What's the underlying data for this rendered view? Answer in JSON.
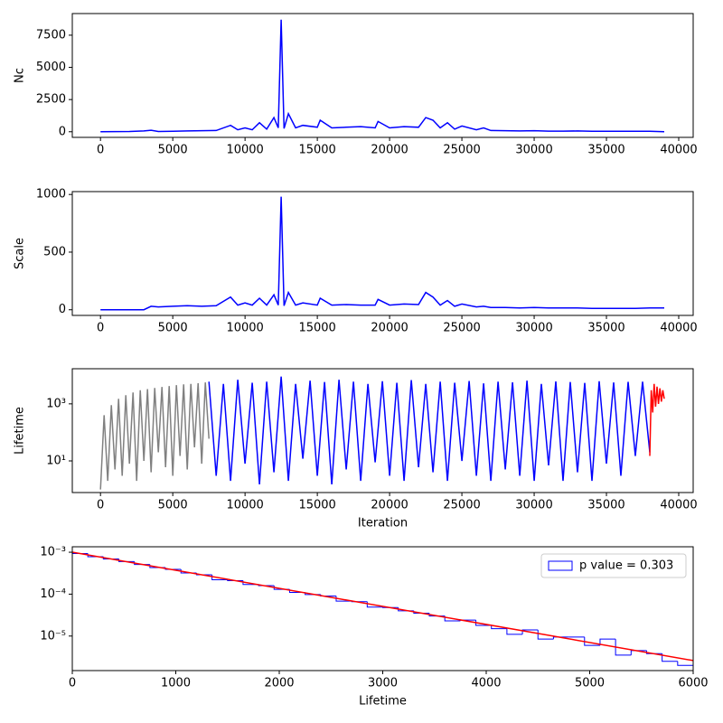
{
  "chart_data": [
    {
      "type": "line",
      "ylabel": "Nc",
      "color": "#0000ff",
      "x": [
        0,
        1000,
        2000,
        3000,
        3500,
        4000,
        5000,
        6000,
        7000,
        8000,
        9000,
        9500,
        10000,
        10500,
        11000,
        11500,
        12000,
        12300,
        12500,
        12700,
        13000,
        13500,
        14000,
        15000,
        15200,
        16000,
        17000,
        18000,
        19000,
        19200,
        20000,
        21000,
        22000,
        22500,
        23000,
        23500,
        24000,
        24500,
        25000,
        26000,
        26500,
        27000,
        28000,
        29000,
        30000,
        31000,
        32000,
        33000,
        34000,
        35000,
        36000,
        37000,
        38000,
        38500,
        39000
      ],
      "values": [
        0,
        10,
        20,
        60,
        120,
        20,
        40,
        60,
        80,
        100,
        500,
        150,
        300,
        150,
        700,
        200,
        1100,
        300,
        8700,
        250,
        1400,
        300,
        500,
        350,
        900,
        300,
        350,
        400,
        300,
        800,
        300,
        400,
        350,
        1100,
        900,
        300,
        700,
        200,
        450,
        150,
        300,
        100,
        80,
        60,
        80,
        50,
        50,
        60,
        40,
        40,
        30,
        30,
        30,
        20,
        0
      ],
      "xlim": [
        -1950,
        41000
      ],
      "xticks": [
        0,
        5000,
        10000,
        15000,
        20000,
        25000,
        30000,
        35000,
        40000
      ],
      "ylim": [
        -437,
        9180
      ],
      "yticks": [
        0,
        2500,
        5000,
        7500
      ]
    },
    {
      "type": "line",
      "ylabel": "Scale",
      "color": "#0000ff",
      "x": [
        0,
        1000,
        2000,
        3000,
        3500,
        4000,
        5000,
        6000,
        7000,
        8000,
        9000,
        9500,
        10000,
        10500,
        11000,
        11500,
        12000,
        12300,
        12500,
        12700,
        13000,
        13500,
        14000,
        15000,
        15200,
        16000,
        17000,
        18000,
        19000,
        19200,
        20000,
        21000,
        22000,
        22500,
        23000,
        23500,
        24000,
        24500,
        25000,
        26000,
        26500,
        27000,
        28000,
        29000,
        30000,
        31000,
        32000,
        33000,
        34000,
        35000,
        36000,
        37000,
        38000,
        38500,
        39000
      ],
      "values": [
        0,
        0,
        0,
        0,
        30,
        25,
        30,
        35,
        30,
        35,
        110,
        40,
        60,
        40,
        100,
        40,
        130,
        40,
        980,
        35,
        150,
        40,
        60,
        40,
        100,
        40,
        45,
        40,
        40,
        90,
        40,
        50,
        45,
        150,
        110,
        40,
        80,
        30,
        50,
        25,
        30,
        20,
        20,
        15,
        20,
        15,
        15,
        15,
        12,
        12,
        12,
        12,
        15,
        15,
        15
      ],
      "xlim": [
        -1950,
        41000
      ],
      "xticks": [
        0,
        5000,
        10000,
        15000,
        20000,
        25000,
        30000,
        35000,
        40000
      ],
      "ylim": [
        -49,
        1025
      ],
      "yticks": [
        0,
        500,
        1000
      ]
    },
    {
      "type": "line",
      "ylabel": "Lifetime",
      "xlabel": "Iteration",
      "log_y": true,
      "series": [
        {
          "color": "#808080",
          "x": [
            0,
            250,
            500,
            750,
            1000,
            1250,
            1500,
            1750,
            2000,
            2250,
            2500,
            2750,
            3000,
            3250,
            3500,
            3750,
            4000,
            4250,
            4500,
            4750,
            5000,
            5250,
            5500,
            5750,
            6000,
            6250,
            6500,
            6750,
            7000,
            7250,
            7500
          ],
          "values": [
            1,
            400,
            2,
            900,
            5,
            1500,
            3,
            2000,
            8,
            2500,
            2,
            3000,
            10,
            3300,
            4,
            3600,
            20,
            3900,
            6,
            4200,
            3,
            4500,
            15,
            4800,
            5,
            5000,
            30,
            5300,
            8,
            5600,
            60
          ]
        },
        {
          "color": "#0000ff",
          "x": [
            7500,
            8000,
            8500,
            9000,
            9500,
            10000,
            10500,
            11000,
            11500,
            12000,
            12500,
            13000,
            13500,
            14000,
            14500,
            15000,
            15500,
            16000,
            16500,
            17000,
            17500,
            18000,
            18500,
            19000,
            19500,
            20000,
            20500,
            21000,
            21500,
            22000,
            22500,
            23000,
            23500,
            24000,
            24500,
            25000,
            25500,
            26000,
            26500,
            27000,
            27500,
            28000,
            28500,
            29000,
            29500,
            30000,
            30500,
            31000,
            31500,
            32000,
            32500,
            33000,
            33500,
            34000,
            34500,
            35000,
            35500,
            36000,
            36500,
            37000,
            37500,
            38000
          ],
          "values": [
            6000,
            3,
            5000,
            2,
            7000,
            8,
            5500,
            1.5,
            6000,
            4,
            9000,
            2,
            5000,
            12,
            6500,
            3,
            5800,
            1.5,
            7000,
            5,
            6000,
            2,
            5000,
            9,
            6200,
            3,
            5500,
            2,
            6800,
            6,
            5000,
            4,
            6000,
            2,
            5500,
            10,
            6300,
            3,
            5200,
            2,
            6000,
            5,
            5700,
            3,
            6500,
            2,
            5000,
            7,
            6100,
            2,
            5800,
            4,
            5400,
            2,
            6200,
            8,
            5600,
            3,
            5900,
            15,
            6000,
            20
          ]
        },
        {
          "color": "#ff0000",
          "x": [
            38000,
            38100,
            38200,
            38300,
            38400,
            38500,
            38600,
            38700,
            38800,
            38900,
            39000
          ],
          "values": [
            15,
            3000,
            500,
            5000,
            800,
            4000,
            1000,
            3500,
            1200,
            3000,
            1500
          ]
        }
      ],
      "xlim": [
        -1950,
        41000
      ],
      "xticks": [
        0,
        5000,
        10000,
        15000,
        20000,
        25000,
        30000,
        35000,
        40000
      ],
      "ylim": [
        0.78,
        17000
      ],
      "yticks": [
        {
          "value": 10,
          "label": "10¹"
        },
        {
          "value": 1000,
          "label": "10³"
        }
      ]
    },
    {
      "type": "histogram",
      "xlabel": "Lifetime",
      "log_y": true,
      "legend": "upper right",
      "bins": [
        0,
        150,
        300,
        450,
        600,
        750,
        900,
        1050,
        1200,
        1350,
        1500,
        1650,
        1800,
        1950,
        2100,
        2250,
        2400,
        2550,
        2700,
        2850,
        3000,
        3150,
        3300,
        3450,
        3600,
        3750,
        3900,
        4050,
        4200,
        4350,
        4500,
        4650,
        4800,
        4950,
        5100,
        5250,
        5400,
        5550,
        5700,
        5850,
        6000
      ],
      "series": [
        {
          "name": "p value = 0.303",
          "color": "#0000ff",
          "values": [
            0.00093,
            0.00078,
            0.00069,
            0.0006,
            0.00051,
            0.00043,
            0.00039,
            0.00032,
            0.00029,
            0.00022,
            0.00021,
            0.00017,
            0.00016,
            0.00013,
            0.00011,
            9.8e-05,
            9e-05,
            6.8e-05,
            6.6e-05,
            4.9e-05,
            4.8e-05,
            4e-05,
            3.5e-05,
            3e-05,
            2.3e-05,
            2.4e-05,
            1.8e-05,
            1.5e-05,
            1.1e-05,
            1.4e-05,
            8.5e-06,
            9.5e-06,
            9.5e-06,
            6e-06,
            8.5e-06,
            3.5e-06,
            4.5e-06,
            3.8e-06,
            2.5e-06,
            2e-06
          ]
        }
      ],
      "fit": {
        "color": "#ff0000",
        "x": [
          0,
          6000
        ],
        "values": [
          0.001,
          2.6e-06
        ]
      },
      "xlim": [
        0,
        6000
      ],
      "xticks": [
        0,
        1000,
        2000,
        3000,
        4000,
        5000,
        6000
      ],
      "ylim": [
        1.5e-06,
        0.00135
      ],
      "yticks": [
        {
          "value": 1e-05,
          "label": "10⁻⁵"
        },
        {
          "value": 0.0001,
          "label": "10⁻⁴"
        },
        {
          "value": 0.001,
          "label": "10⁻³"
        }
      ]
    }
  ]
}
